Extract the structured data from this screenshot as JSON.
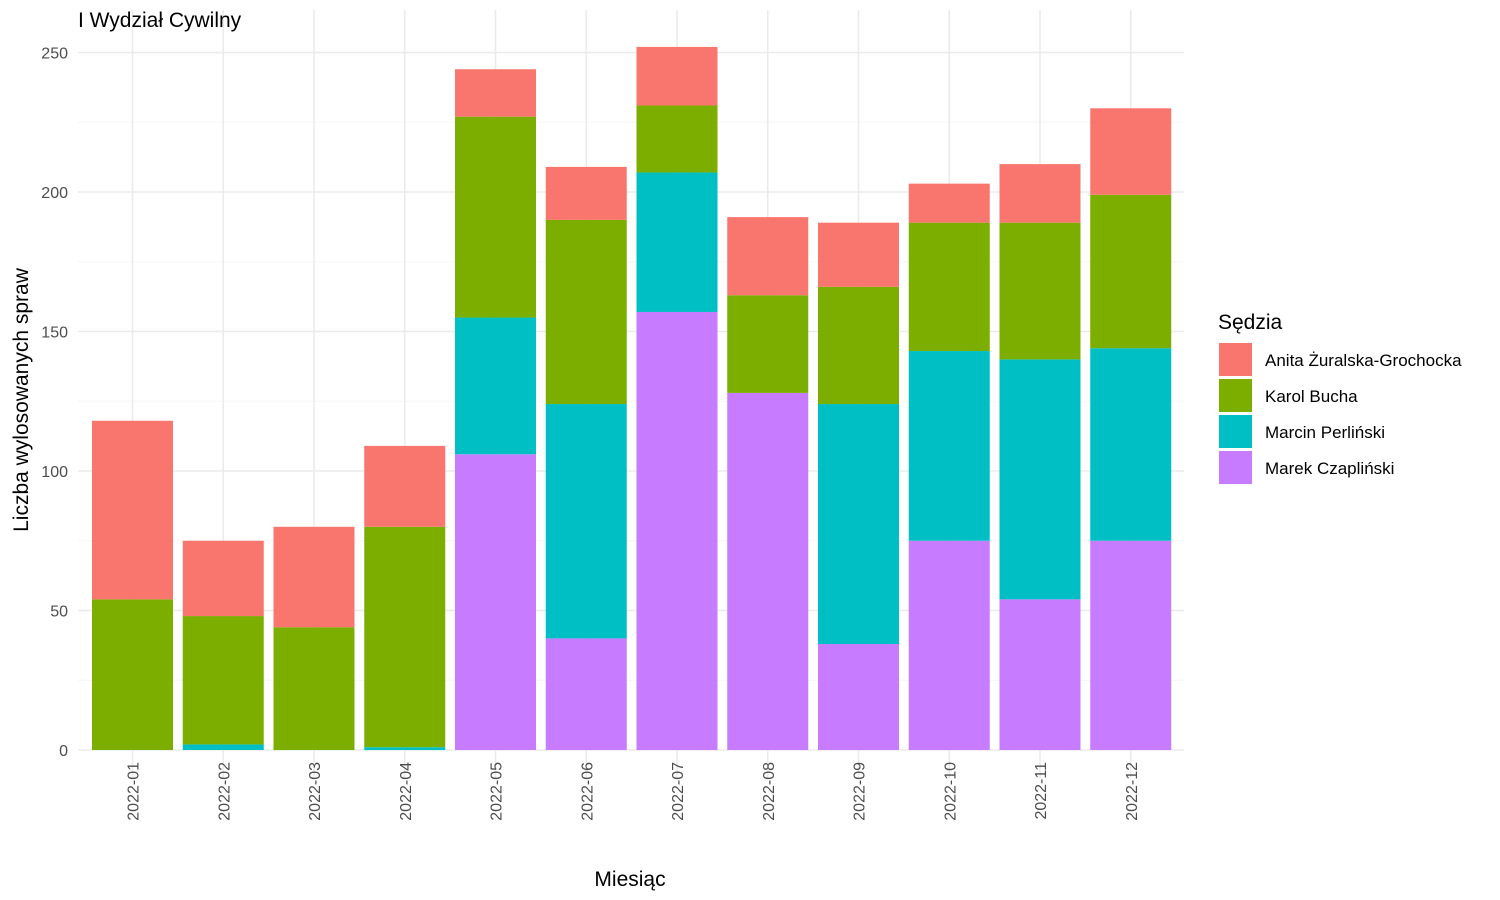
{
  "chart_data": {
    "type": "bar",
    "stacked": true,
    "title": "I Wydział Cywilny",
    "xlabel": "Miesiąc",
    "ylabel": "Liczba wylosowanych spraw",
    "ylim": [
      0,
      260
    ],
    "yticks": [
      0,
      50,
      100,
      150,
      200,
      250
    ],
    "grid": true,
    "legend_title": "Sędzia",
    "legend_position": "right",
    "categories": [
      "2022-01",
      "2022-02",
      "2022-03",
      "2022-04",
      "2022-05",
      "2022-06",
      "2022-07",
      "2022-08",
      "2022-09",
      "2022-10",
      "2022-11",
      "2022-12"
    ],
    "series": [
      {
        "name": "Marek Czapliński",
        "color": "#C77CFF",
        "values": [
          0,
          0,
          0,
          0,
          106,
          40,
          157,
          128,
          38,
          75,
          54,
          75
        ]
      },
      {
        "name": "Marcin Perliński",
        "color": "#00BFC4",
        "values": [
          0,
          2,
          0,
          1,
          49,
          84,
          50,
          0,
          86,
          68,
          86,
          69
        ]
      },
      {
        "name": "Karol Bucha",
        "color": "#7CAE00",
        "values": [
          54,
          46,
          44,
          79,
          72,
          66,
          24,
          35,
          42,
          46,
          49,
          55
        ]
      },
      {
        "name": "Anita Żuralska-Grochocka",
        "color": "#F8766D",
        "values": [
          64,
          27,
          36,
          29,
          17,
          19,
          21,
          28,
          23,
          14,
          21,
          31
        ]
      }
    ],
    "legend_order": [
      "Anita Żuralska-Grochocka",
      "Karol Bucha",
      "Marcin Perliński",
      "Marek Czapliński"
    ]
  }
}
